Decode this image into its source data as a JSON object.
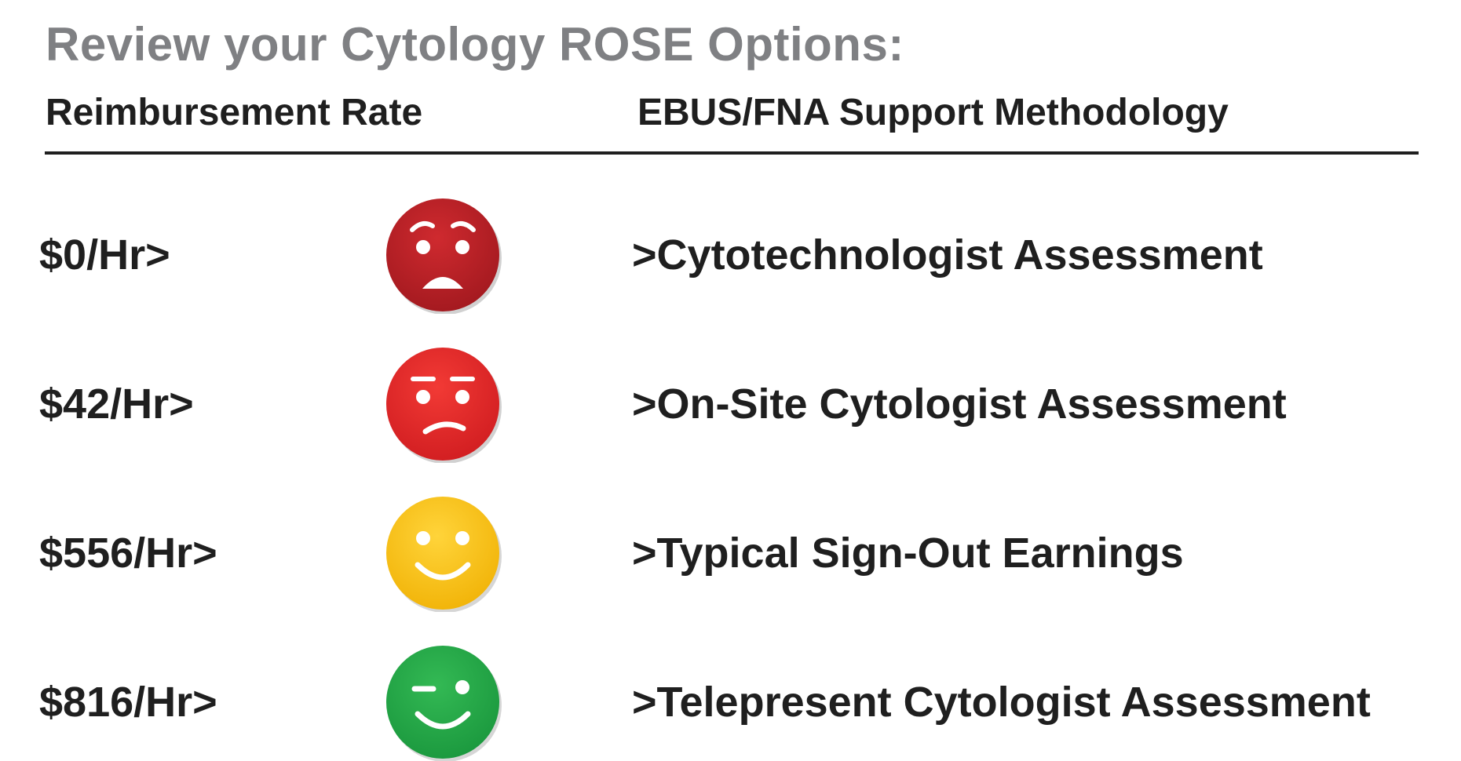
{
  "title": "Review your Cytology ROSE Options:",
  "headers": {
    "rate": "Reimbursement Rate",
    "method": "EBUS/FNA Support Methodology"
  },
  "rows": [
    {
      "rate": "$0/Hr>",
      "method": ">Cytotechnologist Assessment",
      "face_icon": "sad-face-icon",
      "color": "#b81f25"
    },
    {
      "rate": "$42/Hr>",
      "method": ">On-Site Cytologist Assessment",
      "face_icon": "unhappy-face-icon",
      "color": "#e6272a"
    },
    {
      "rate": "$556/Hr>",
      "method": ">Typical Sign-Out Earnings",
      "face_icon": "smiley-face-icon",
      "color": "#fcc419"
    },
    {
      "rate": "$816/Hr>",
      "method": ">Telepresent Cytologist Assessment",
      "face_icon": "winking-face-icon",
      "color": "#22a94a"
    }
  ]
}
